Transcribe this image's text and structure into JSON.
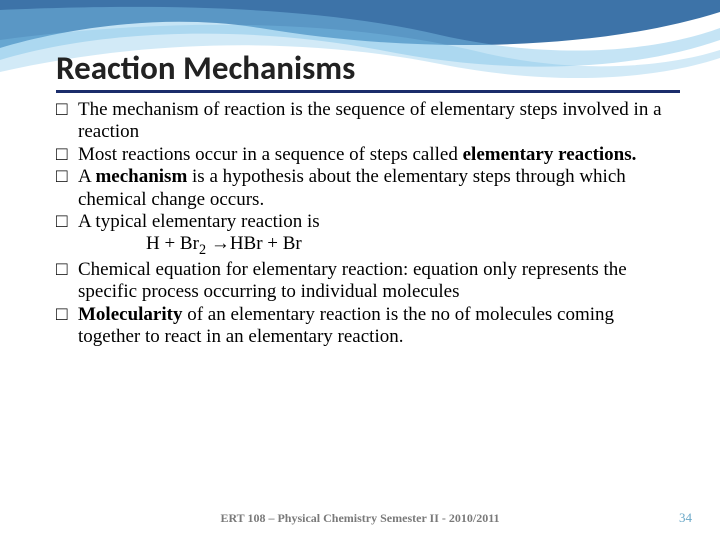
{
  "title": "Reaction Mechanisms",
  "bullets": [
    {
      "html": "The mechanism of reaction is the sequence of elementary steps involved in a reaction"
    },
    {
      "html": "Most reactions occur in a sequence of steps called <b>elementary reactions.</b>"
    },
    {
      "html": "A <b>mechanism</b> is a hypothesis about the elementary steps through which chemical change occurs."
    },
    {
      "html": "A typical elementary reaction is"
    },
    {
      "html": "Chemical equation for elementary reaction: equation only represents the specific process occurring to individual molecules"
    },
    {
      "html": "<b>Molecularity</b> of an elementary reaction is the no of molecules coming together to react in an elementary reaction."
    }
  ],
  "equation": "H + Br<span class=\"sub2\">2</span> <span class=\"arrow\">&rarr;</span>HBr + Br",
  "footer": "ERT 108 – Physical Chemistry Semester II - 2010/2011",
  "page_number": "34",
  "colors": {
    "title_underline": "#1b2d6b",
    "footer_text": "#7a7a7a",
    "pagenum_text": "#6aa8c8",
    "wave_dark": "#1b5a99",
    "wave_light": "#7ec4e8"
  }
}
